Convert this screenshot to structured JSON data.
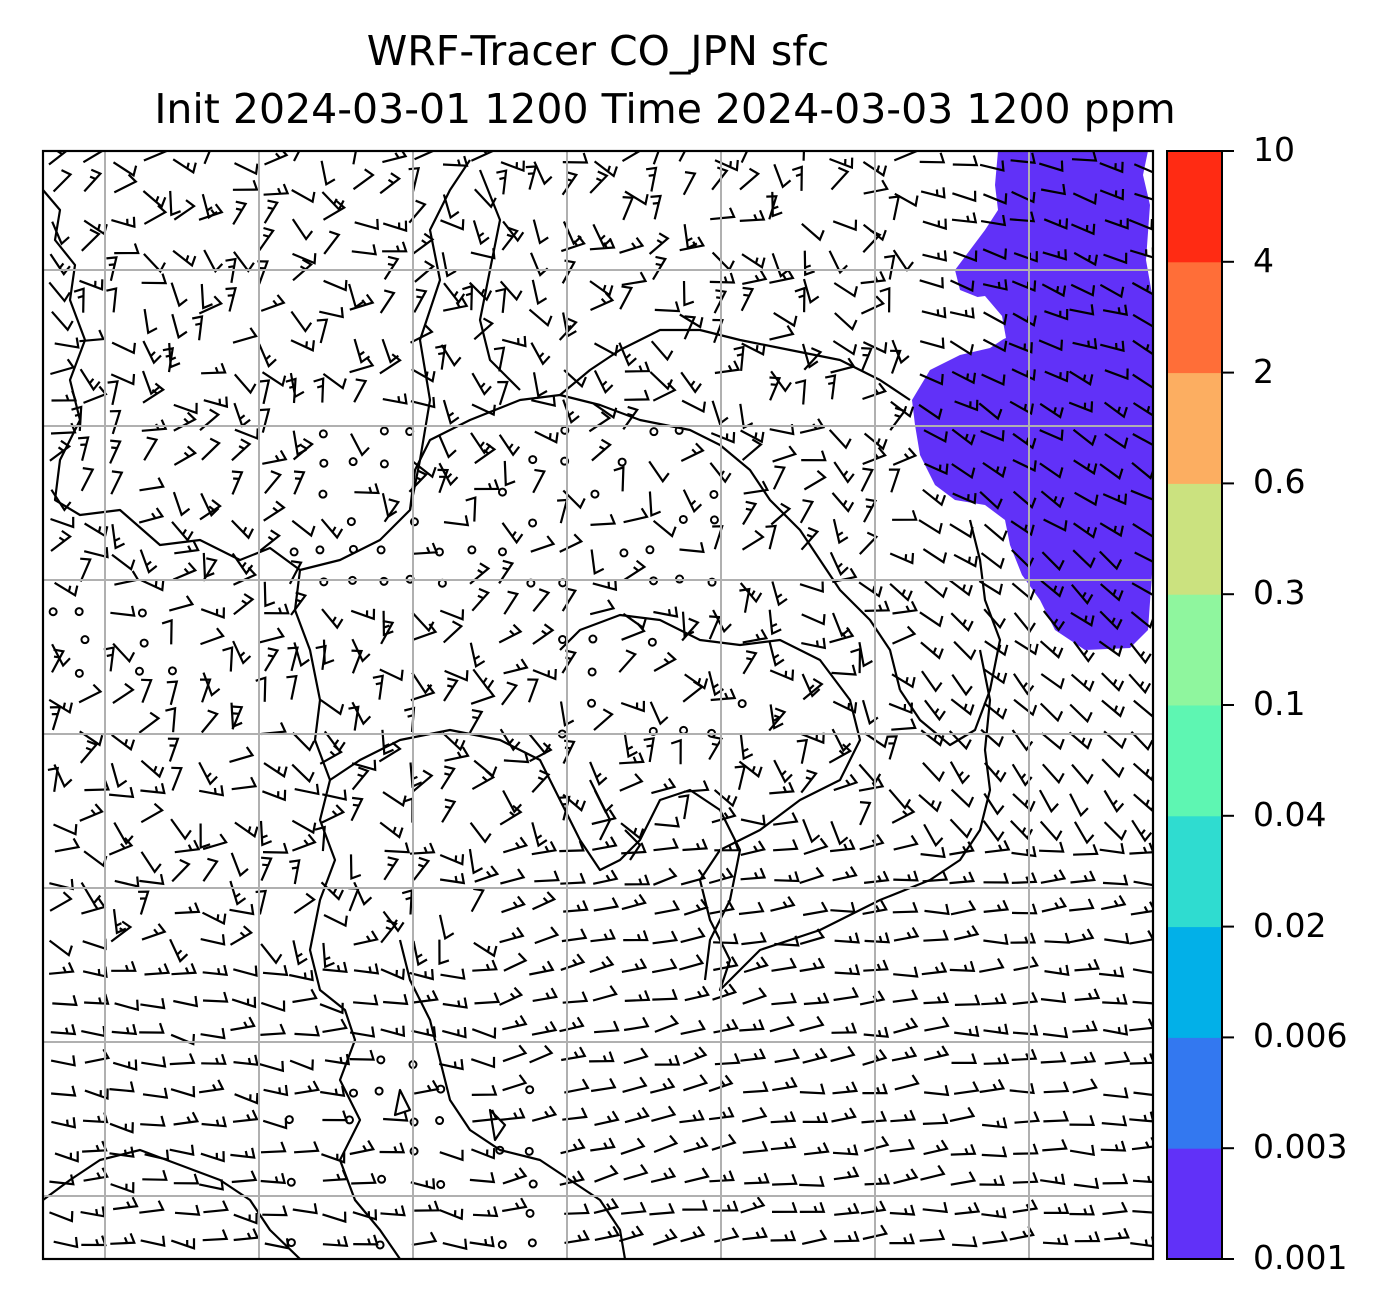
{
  "title_line1": "WRF-Tracer CO_JPN sfc",
  "title_line2": "Init 2024-03-01 1200 Time 2024-03-03 1200 ppm",
  "colorbar": {
    "labels": [
      "0.001",
      "0.003",
      "0.006",
      "0.02",
      "0.04",
      "0.1",
      "0.3",
      "0.6",
      "2",
      "4",
      "10"
    ],
    "colors": [
      "#6131f8",
      "#3378f0",
      "#02b0e8",
      "#2fdcd0",
      "#5ef6b2",
      "#8ff69e",
      "#cbe27f",
      "#fcae61",
      "#ff6e38",
      "#ff2b13"
    ]
  },
  "map": {
    "gridline_color": "#b0b0b0",
    "coastline_color": "#000000",
    "tracer_fill_color": "#6131f8",
    "tracer_level": "0.001–0.003 ppm region in the north-east of the domain",
    "wind_barbs": "wind barb field over the entire domain, with calm-wind circles"
  }
}
